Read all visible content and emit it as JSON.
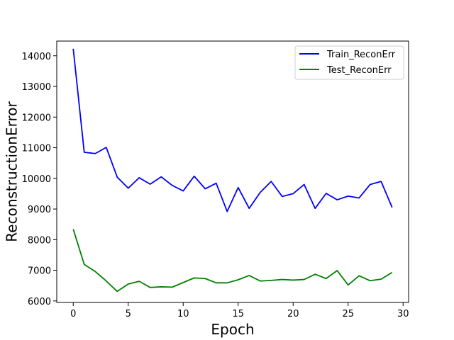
{
  "chart_data": {
    "type": "line",
    "title": "",
    "xlabel": "Epoch",
    "ylabel": "ReconstructionError",
    "x": [
      0,
      1,
      2,
      3,
      4,
      5,
      6,
      7,
      8,
      9,
      10,
      11,
      12,
      13,
      14,
      15,
      16,
      17,
      18,
      19,
      20,
      21,
      22,
      23,
      24,
      25,
      26,
      27,
      28,
      29
    ],
    "xlim": [
      -1.5,
      30.5
    ],
    "ylim": [
      5950,
      14480
    ],
    "xticks": [
      0,
      5,
      10,
      15,
      20,
      25,
      30
    ],
    "yticks": [
      6000,
      7000,
      8000,
      9000,
      10000,
      11000,
      12000,
      13000,
      14000
    ],
    "grid": false,
    "legend_position": "top-right",
    "series": [
      {
        "name": "Train_ReconErr",
        "color": "#0000ff",
        "values": [
          14230,
          10850,
          10810,
          11010,
          10040,
          9680,
          10020,
          9810,
          10050,
          9770,
          9590,
          10070,
          9660,
          9840,
          8920,
          9700,
          9020,
          9540,
          9900,
          9410,
          9500,
          9800,
          9020,
          9510,
          9300,
          9420,
          9360,
          9800,
          9900,
          9050
        ]
      },
      {
        "name": "Test_ReconErr",
        "color": "#008000",
        "values": [
          8340,
          7190,
          6960,
          6650,
          6310,
          6550,
          6640,
          6440,
          6460,
          6450,
          6600,
          6750,
          6730,
          6590,
          6590,
          6690,
          6830,
          6650,
          6670,
          6700,
          6680,
          6700,
          6870,
          6730,
          6990,
          6520,
          6820,
          6660,
          6710,
          6930
        ]
      }
    ]
  }
}
